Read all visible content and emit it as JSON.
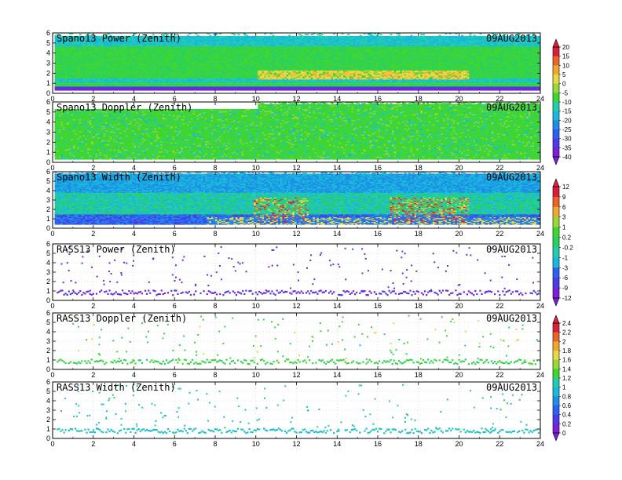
{
  "chart_data": {
    "type": "heatmap",
    "x_ticks": [
      "0",
      "2",
      "4",
      "6",
      "8",
      "10",
      "12",
      "14",
      "16",
      "18",
      "20",
      "22",
      "24"
    ],
    "y_ticks": [
      "0",
      "1",
      "2",
      "3",
      "4",
      "5",
      "6"
    ],
    "xlim": [
      0,
      24
    ],
    "ylim": [
      0,
      6
    ],
    "grid": true,
    "panels": [
      {
        "title": "Spano13 Power (Zenith)",
        "date": "09AUG2013",
        "kind": "power"
      },
      {
        "title": "Spano13 Doppler (Zenith)",
        "date": "09AUG2013",
        "kind": "doppler"
      },
      {
        "title": "Spano13 Width (Zenith)",
        "date": "09AUG2013",
        "kind": "width"
      },
      {
        "title": "RASS13 Power (Zenith)",
        "date": "09AUG2013",
        "kind": "rpower"
      },
      {
        "title": "RASS13 Doppler (Zenith)",
        "date": "09AUG2013",
        "kind": "rdoppler"
      },
      {
        "title": "RASS13 Width (Zenith)",
        "date": "09AUG2013",
        "kind": "rwidth"
      }
    ],
    "colorbars": [
      {
        "labels": [
          "20",
          "15",
          "10",
          "5",
          "0",
          "-5",
          "-10",
          "-15",
          "-20",
          "-25",
          "-30",
          "-35",
          "-40"
        ]
      },
      {
        "labels": [
          "12",
          "9",
          "6",
          "3",
          "1",
          "0.2",
          "-0.2",
          "-1",
          "-3",
          "-6",
          "-9",
          "-12"
        ]
      },
      {
        "labels": [
          "2.4",
          "2.2",
          "2",
          "1.8",
          "1.6",
          "1.4",
          "1.2",
          "1",
          "0.8",
          "0.6",
          "0.4",
          "0.2",
          "0"
        ]
      }
    ]
  },
  "colors": {
    "palette": [
      "#7b1fd8",
      "#4b3be8",
      "#2c62f0",
      "#1e8fe6",
      "#19b8dc",
      "#22cdb0",
      "#2bd160",
      "#40d630",
      "#9ad83a",
      "#e6d846",
      "#f0a830",
      "#ec6428",
      "#d81f3c"
    ],
    "palette_colors": "violet-to-red rainbow"
  }
}
